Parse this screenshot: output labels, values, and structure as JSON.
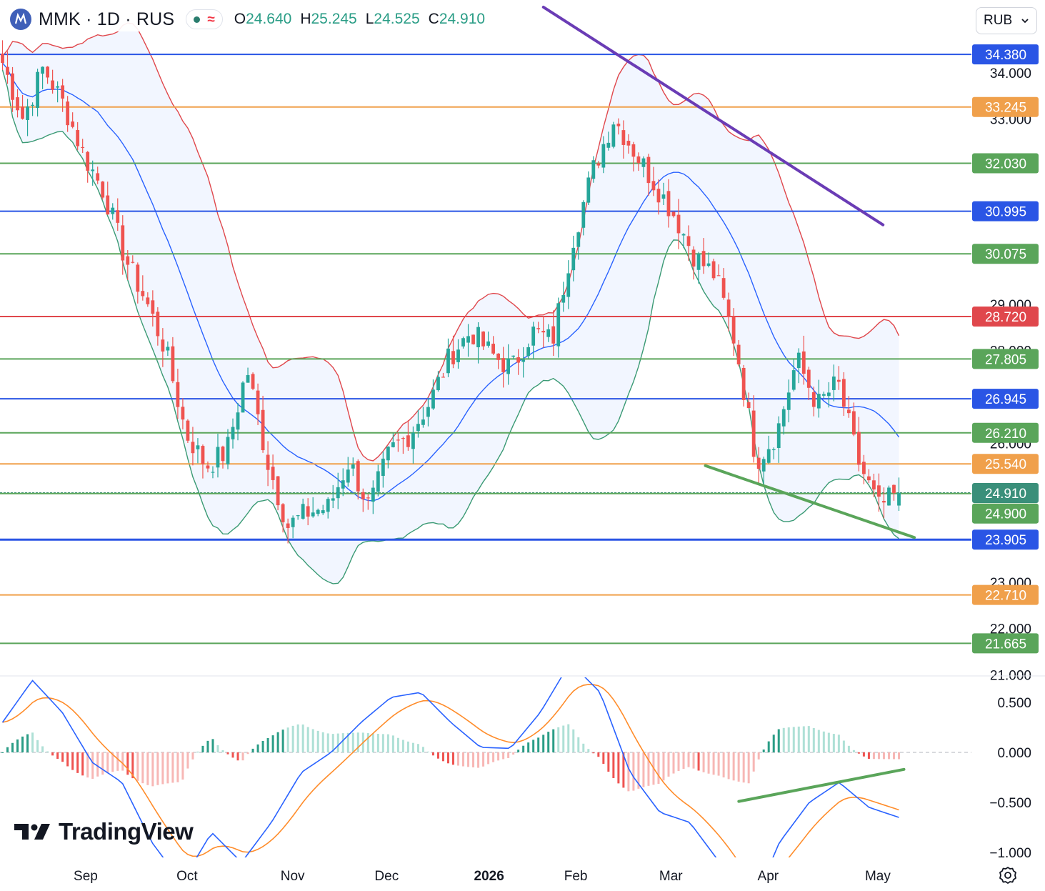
{
  "header": {
    "symbol": "MMK · 1D · RUS",
    "ohlc": [
      {
        "key": "O",
        "value": "24.640"
      },
      {
        "key": "H",
        "value": "25.245"
      },
      {
        "key": "L",
        "value": "24.525"
      },
      {
        "key": "C",
        "value": "24.910"
      }
    ],
    "indicator_status_icon": "dot-icon",
    "indicator_wave_icon": "wave-icon"
  },
  "currency_selector": {
    "value": "RUB",
    "icon": "chevron-down-icon"
  },
  "branding": {
    "text": "TradingView"
  },
  "settings_icon": "gear-icon",
  "colors": {
    "up": "#26a69a",
    "down": "#ef5350",
    "blue": "#2a55e5",
    "orange": "#f0a04b",
    "green": "#5aa55a",
    "red": "#e0474c",
    "purple": "#6a3cb5",
    "macd": "#2962ff",
    "signal": "#ff8c2a"
  },
  "chart_data": [
    {
      "type": "candlestick",
      "panel": "price",
      "y_range": [
        20.9,
        35.4
      ],
      "price_ticks": [
        "34.000",
        "33.000",
        "29.000",
        "28.000",
        "26.000",
        "23.000",
        "22.000",
        "21.000"
      ],
      "x_axis_labels": [
        "Sep",
        "Oct",
        "Nov",
        "Dec",
        "2026",
        "Feb",
        "Mar",
        "Apr",
        "May"
      ],
      "last_ohlc": {
        "open": 24.64,
        "high": 25.245,
        "low": 24.525,
        "close": 24.91
      },
      "close_path": [
        [
          0,
          34.2
        ],
        [
          1,
          33.0
        ],
        [
          2,
          34.1
        ],
        [
          3,
          33.3
        ],
        [
          4,
          32.2
        ],
        [
          5,
          31.4
        ],
        [
          6,
          30.0
        ],
        [
          7,
          29.1
        ],
        [
          8,
          28.0
        ],
        [
          9,
          26.2
        ],
        [
          10,
          25.5
        ],
        [
          11,
          25.8
        ],
        [
          12,
          27.6
        ],
        [
          13,
          25.6
        ],
        [
          14,
          24.2
        ],
        [
          15,
          24.5
        ],
        [
          16,
          24.6
        ],
        [
          17,
          25.6
        ],
        [
          18,
          24.6
        ],
        [
          19,
          25.8
        ],
        [
          20,
          26.2
        ],
        [
          21,
          26.9
        ],
        [
          22,
          27.9
        ],
        [
          23,
          28.4
        ],
        [
          24,
          27.9
        ],
        [
          25,
          27.6
        ],
        [
          26,
          28.4
        ],
        [
          27,
          28.2
        ],
        [
          28,
          30.4
        ],
        [
          29,
          31.9
        ],
        [
          30,
          33.0
        ],
        [
          31,
          32.3
        ],
        [
          32,
          31.6
        ],
        [
          33,
          30.9
        ],
        [
          34,
          30.0
        ],
        [
          35,
          29.6
        ],
        [
          36,
          28.1
        ],
        [
          37,
          25.6
        ],
        [
          38,
          26.2
        ],
        [
          39,
          27.8
        ],
        [
          40,
          26.8
        ],
        [
          41,
          27.3
        ],
        [
          42,
          25.6
        ],
        [
          43,
          24.6
        ],
        [
          44,
          24.91
        ]
      ],
      "bollinger_bands": {
        "basis_color": "#2962ff",
        "upper_color": "#e0474c",
        "lower_color": "#3a9a74"
      },
      "horizontal_levels": [
        {
          "label": "34.380",
          "value": 34.38,
          "color": "#2a55e5"
        },
        {
          "label": "33.245",
          "value": 33.245,
          "color": "#f0a04b"
        },
        {
          "label": "32.030",
          "value": 32.03,
          "color": "#5aa55a"
        },
        {
          "label": "30.995",
          "value": 30.995,
          "color": "#2a55e5"
        },
        {
          "label": "30.075",
          "value": 30.075,
          "color": "#5aa55a"
        },
        {
          "label": "28.720",
          "value": 28.72,
          "color": "#e0474c"
        },
        {
          "label": "27.805",
          "value": 27.805,
          "color": "#5aa55a"
        },
        {
          "label": "26.945",
          "value": 26.945,
          "color": "#2a55e5"
        },
        {
          "label": "26.210",
          "value": 26.21,
          "color": "#5aa55a"
        },
        {
          "label": "25.540",
          "value": 25.54,
          "color": "#f0a04b"
        },
        {
          "label": "24.910",
          "value": 24.91,
          "color": "#3a8f7a"
        },
        {
          "label": "24.900",
          "value": 24.9,
          "color": "#5aa55a"
        },
        {
          "label": "23.905",
          "value": 23.905,
          "color": "#2a55e5"
        },
        {
          "label": "22.710",
          "value": 22.71,
          "color": "#f0a04b"
        },
        {
          "label": "21.665",
          "value": 21.665,
          "color": "#5aa55a"
        }
      ],
      "trendlines": [
        {
          "color": "#6a3cb5",
          "from": [
            0.52,
            35.4
          ],
          "to": [
            0.845,
            30.7
          ]
        },
        {
          "color": "#5aa55a",
          "from": [
            0.675,
            25.5
          ],
          "to": [
            0.875,
            23.95
          ]
        }
      ]
    },
    {
      "type": "macd",
      "panel": "oscillator",
      "y_range": [
        -1.05,
        0.75
      ],
      "value_ticks": [
        "0.500",
        "0.000",
        "−0.500",
        "−1.000"
      ],
      "macd_path": [
        [
          0,
          0.3
        ],
        [
          2,
          0.72
        ],
        [
          4,
          0.4
        ],
        [
          6,
          -0.1
        ],
        [
          8,
          -0.3
        ],
        [
          10,
          -0.9
        ],
        [
          12,
          -1.3
        ],
        [
          14,
          -0.8
        ],
        [
          16,
          -1.1
        ],
        [
          18,
          -0.7
        ],
        [
          20,
          -0.2
        ],
        [
          22,
          0.0
        ],
        [
          24,
          0.3
        ],
        [
          26,
          0.55
        ],
        [
          28,
          0.6
        ],
        [
          30,
          0.3
        ],
        [
          32,
          0.05
        ],
        [
          34,
          0.04
        ],
        [
          36,
          0.4
        ],
        [
          38,
          0.9
        ],
        [
          40,
          0.6
        ],
        [
          42,
          -0.2
        ],
        [
          44,
          -0.6
        ],
        [
          46,
          -0.7
        ],
        [
          48,
          -1.1
        ],
        [
          50,
          -1.6
        ],
        [
          52,
          -0.9
        ],
        [
          54,
          -0.5
        ],
        [
          56,
          -0.3
        ],
        [
          58,
          -0.55
        ],
        [
          60,
          -0.65
        ]
      ],
      "trendline": {
        "color": "#5aa55a",
        "from": [
          0.707,
          -0.49
        ],
        "to": [
          0.865,
          -0.17
        ]
      }
    }
  ]
}
